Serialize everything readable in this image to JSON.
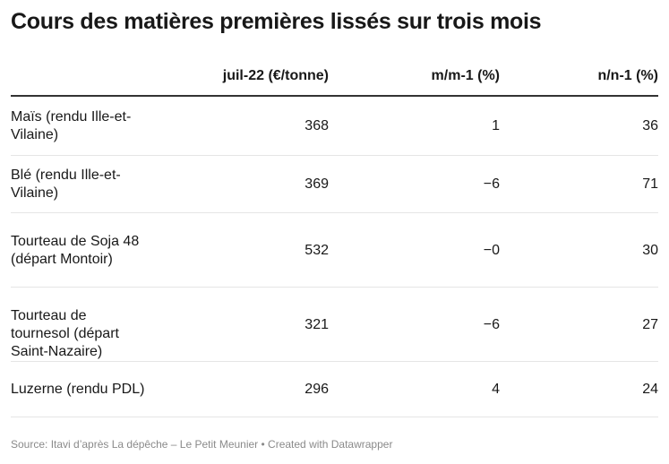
{
  "title": "Cours des matières premières lissés sur trois mois",
  "footer": "Source: Itavi d’après La dépêche – Le Petit Meunier • Created with Datawrapper",
  "chart_data": {
    "type": "table",
    "columns": [
      "",
      "juil-22 (€/tonne)",
      "m/m-1 (%)",
      "n/n-1 (%)"
    ],
    "rows": [
      {
        "name": "Maïs (rendu Ille-et-Vilaine)",
        "price": "368",
        "mm": "1",
        "nn": "36"
      },
      {
        "name": "Blé (rendu Ille-et-Vilaine)",
        "price": "369",
        "mm": "−6",
        "nn": "71"
      },
      {
        "name": "Tourteau de Soja 48 (départ Montoir)",
        "price": "532",
        "mm": "−0",
        "nn": "30"
      },
      {
        "name": "Tourteau de tournesol (départ Saint-Nazaire)",
        "price": "321",
        "mm": "−6",
        "nn": "27"
      },
      {
        "name": "Luzerne (rendu PDL)",
        "price": "296",
        "mm": "4",
        "nn": "24"
      }
    ]
  }
}
